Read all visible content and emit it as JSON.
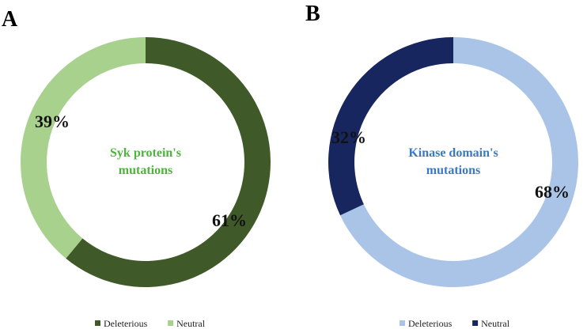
{
  "panels": [
    {
      "letter": "A"
    },
    {
      "letter": "B"
    }
  ],
  "chart_data": [
    {
      "type": "pie",
      "variant": "donut",
      "panel": "A",
      "center_label": [
        "Syk protein's",
        "mutations"
      ],
      "center_label_color": "#4db33c",
      "slices": [
        {
          "name": "Deleterious",
          "value": 61,
          "label": "61%",
          "color": "#3f5a28"
        },
        {
          "name": "Neutral",
          "value": 39,
          "label": "39%",
          "color": "#a9d18e"
        }
      ],
      "legend": [
        "Deleterious",
        "Neutral"
      ],
      "legend_position": "bottom"
    },
    {
      "type": "pie",
      "variant": "donut",
      "panel": "B",
      "center_label": [
        "Kinase domain's",
        "mutations"
      ],
      "center_label_color": "#3a78c9",
      "slices": [
        {
          "name": "Deleterious",
          "value": 68,
          "label": "68%",
          "color": "#a9c4e6"
        },
        {
          "name": "Neutral",
          "value": 32,
          "label": "32%",
          "color": "#17265e"
        }
      ],
      "legend": [
        "Deleterious",
        "Neutral"
      ],
      "legend_position": "bottom"
    }
  ]
}
